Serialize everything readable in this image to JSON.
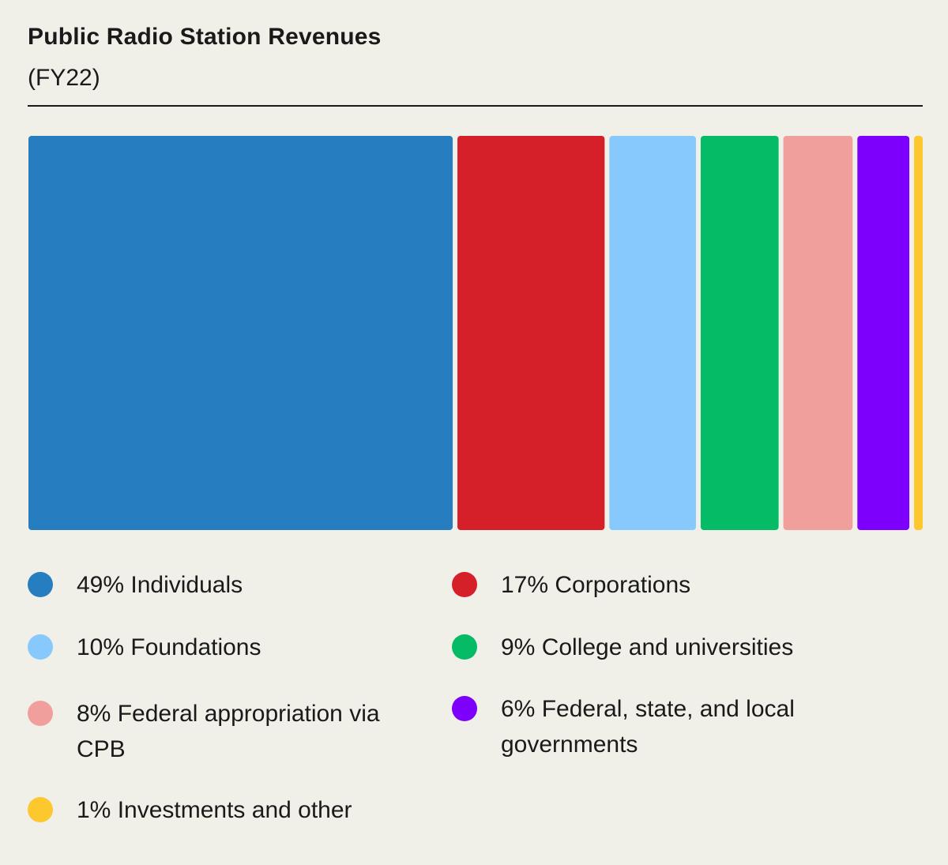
{
  "title": "Public Radio Station Revenues",
  "subtitle": "(FY22)",
  "chart_data": {
    "type": "bar",
    "layout": "stacked-horizontal-proportional",
    "title": "Public Radio Station Revenues",
    "subtitle": "(FY22)",
    "unit": "%",
    "categories": [
      "Individuals",
      "Corporations",
      "Foundations",
      "College and universities",
      "Federal appropriation via CPB",
      "Federal, state, and local governments",
      "Investments and other"
    ],
    "values": [
      49,
      17,
      10,
      9,
      8,
      6,
      1
    ],
    "colors": [
      "#267dc0",
      "#d5202a",
      "#87c9fd",
      "#06bb65",
      "#f19f9d",
      "#7c00fb",
      "#fdc72e"
    ],
    "grid": false,
    "legend_placement": "bottom",
    "legend": [
      {
        "text": "49% Individuals",
        "color": "#267dc0"
      },
      {
        "text": "17% Corporations",
        "color": "#d5202a"
      },
      {
        "text": "10% Foundations",
        "color": "#87c9fd"
      },
      {
        "text": "9% College and universities",
        "color": "#06bb65"
      },
      {
        "text": "8% Federal appropriation via CPB",
        "color": "#f19f9d"
      },
      {
        "text": "6% Federal, state, and local governments",
        "color": "#7c00fb"
      },
      {
        "text": "1% Investments and other",
        "color": "#fdc72e"
      }
    ]
  }
}
